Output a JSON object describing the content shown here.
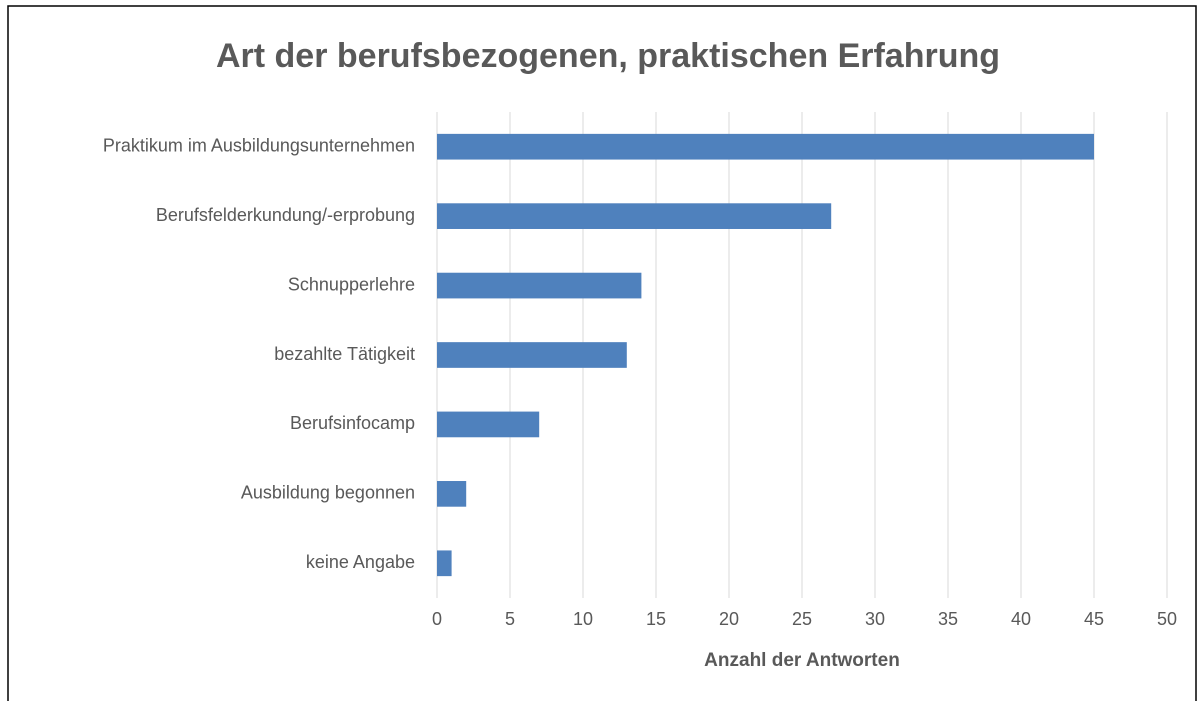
{
  "chart_data": {
    "type": "barh",
    "title": "Art der berufsbezogenen, praktischen Erfahrung",
    "x_label": "Anzahl der Antworten",
    "categories": [
      "Praktikum im Ausbildungsunternehmen",
      "Berufsfelderkundung/-erprobung",
      "Schnupperlehre",
      "bezahlte Tätigkeit",
      "Berufsinfocamp",
      "Ausbildung begonnen",
      "keine Angabe"
    ],
    "values": [
      45,
      27,
      14,
      13,
      7,
      2,
      1
    ],
    "color": "#4f81bd",
    "xlim": [
      0,
      50
    ],
    "xticks": [
      0,
      5,
      10,
      15,
      20,
      25,
      30,
      35,
      40,
      45,
      50
    ],
    "grid": true
  }
}
